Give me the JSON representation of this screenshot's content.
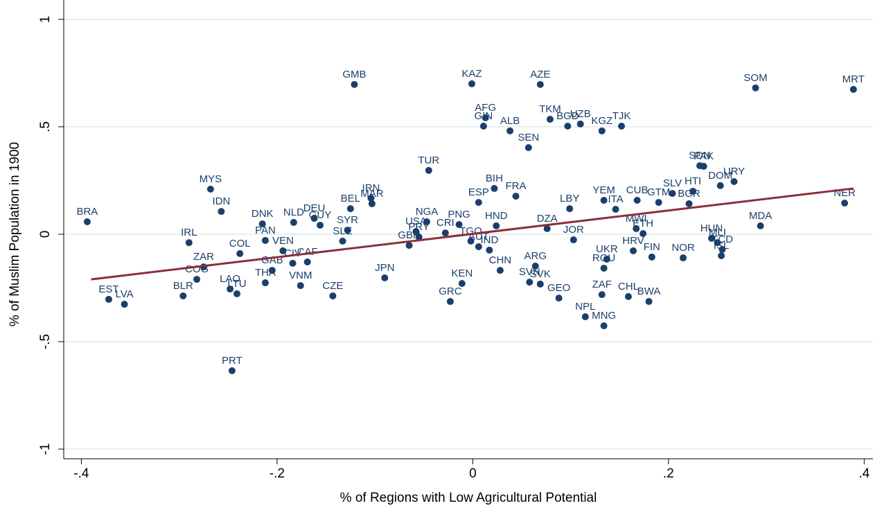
{
  "chart_data": {
    "type": "scatter",
    "x_label": "% of Regions with Low Agricultural Potential",
    "y_label": "% of Muslim Population in 1900",
    "xlim": [
      -0.418,
      0.409
    ],
    "ylim": [
      -1.045,
      1.09
    ],
    "xticks": [
      {
        "value": -0.4,
        "label": "-.4"
      },
      {
        "value": -0.2,
        "label": "-.2"
      },
      0,
      {
        "value": 0.2,
        "label": ".2"
      },
      {
        "value": 0.4,
        "label": ".4"
      }
    ],
    "yticks": [
      -1,
      {
        "value": -0.5,
        "label": "-.5"
      },
      0,
      {
        "value": 0.5,
        "label": ".5"
      },
      1
    ],
    "grid": true,
    "color": "#1a3f6b",
    "labels": [
      "BRA",
      "EST",
      "LVA",
      "BLR",
      "IRL",
      "ZAR",
      "COG",
      "MYS",
      "IDN",
      "PRT",
      "LAO",
      "LTU",
      "COL",
      "DNK",
      "PAN",
      "THA",
      "VEN",
      "GAB",
      "NLD",
      "CIV",
      "CAF",
      "VNM",
      "DEU",
      "GUY",
      "SYR",
      "BEL",
      "IRN",
      "MAR",
      "SLE",
      "CZE",
      "GMB",
      "TUR",
      "KAZ",
      "AZE",
      "AFG",
      "GIN",
      "ALB",
      "SEN",
      "TKM",
      "BGD",
      "UZB",
      "KGZ",
      "TJK",
      "SOM",
      "MRT",
      "BIH",
      "FRA",
      "ESP",
      "NGA",
      "PNG",
      "USA",
      "PRY",
      "CRI",
      "GBR",
      "HND",
      "TGO",
      "AUT",
      "IND",
      "CHN",
      "KEN",
      "GRC",
      "LBY",
      "DZA",
      "JOR",
      "YEM",
      "ITA",
      "CUB",
      "GTM",
      "SLV",
      "HTI",
      "BGR",
      "SDN",
      "PAK",
      "DOM",
      "URY",
      "NER",
      "MDA",
      "TCD",
      "HUN",
      "MLI",
      "ISL",
      "MWI",
      "ETH",
      "HRV",
      "FIN",
      "NOR",
      "UKR",
      "ROU",
      "ZAF",
      "CHL",
      "BWA",
      "NPL",
      "MNG",
      "GEO",
      "ARG",
      "SVN",
      "SVK",
      "JPN"
    ],
    "x": [
      -0.394,
      -0.372,
      -0.356,
      -0.296,
      -0.29,
      -0.275,
      -0.282,
      -0.268,
      -0.257,
      -0.246,
      -0.248,
      -0.241,
      -0.238,
      -0.215,
      -0.212,
      -0.212,
      -0.194,
      -0.205,
      -0.183,
      -0.184,
      -0.169,
      -0.176,
      -0.162,
      -0.156,
      -0.128,
      -0.125,
      -0.104,
      -0.103,
      -0.133,
      -0.143,
      -0.121,
      -0.045,
      -0.001,
      0.069,
      0.013,
      0.011,
      0.038,
      0.057,
      0.079,
      0.097,
      0.11,
      0.132,
      0.152,
      0.289,
      0.389,
      0.022,
      0.044,
      0.006,
      -0.047,
      -0.014,
      -0.058,
      -0.055,
      -0.028,
      -0.065,
      0.024,
      -0.002,
      0.006,
      0.017,
      0.028,
      -0.011,
      -0.023,
      0.099,
      0.076,
      0.103,
      0.134,
      0.146,
      0.168,
      0.19,
      0.204,
      0.225,
      0.221,
      0.232,
      0.236,
      0.253,
      0.267,
      0.38,
      0.294,
      0.255,
      0.244,
      0.25,
      0.254,
      0.167,
      0.174,
      0.164,
      0.183,
      0.215,
      0.137,
      0.134,
      0.132,
      0.159,
      0.18,
      0.115,
      0.134,
      0.088,
      0.064,
      0.058,
      0.069,
      -0.09
    ],
    "y": [
      0.058,
      -0.303,
      -0.326,
      -0.287,
      -0.039,
      -0.152,
      -0.21,
      0.21,
      0.106,
      -0.635,
      -0.255,
      -0.277,
      -0.09,
      0.048,
      -0.029,
      -0.226,
      -0.077,
      -0.168,
      0.055,
      -0.135,
      -0.129,
      -0.239,
      0.074,
      0.042,
      0.019,
      0.119,
      0.168,
      0.142,
      -0.032,
      -0.287,
      0.697,
      0.297,
      0.7,
      0.697,
      0.542,
      0.503,
      0.481,
      0.403,
      0.535,
      0.503,
      0.513,
      0.481,
      0.503,
      0.681,
      0.674,
      0.213,
      0.177,
      0.148,
      0.058,
      0.045,
      0.013,
      -0.013,
      0.006,
      -0.052,
      0.039,
      -0.032,
      -0.058,
      -0.074,
      -0.168,
      -0.229,
      -0.313,
      0.119,
      0.026,
      -0.026,
      0.158,
      0.116,
      0.158,
      0.148,
      0.19,
      0.2,
      0.142,
      0.319,
      0.316,
      0.226,
      0.245,
      0.145,
      0.039,
      -0.071,
      -0.019,
      -0.039,
      -0.1,
      0.026,
      0.003,
      -0.077,
      -0.106,
      -0.11,
      -0.116,
      -0.158,
      -0.281,
      -0.29,
      -0.313,
      -0.384,
      -0.426,
      -0.297,
      -0.148,
      -0.223,
      -0.232,
      -0.203
    ],
    "fit_line": {
      "color": "#8b2e3a",
      "x": [
        -0.39,
        0.389
      ],
      "y": [
        -0.21,
        0.213
      ]
    }
  }
}
